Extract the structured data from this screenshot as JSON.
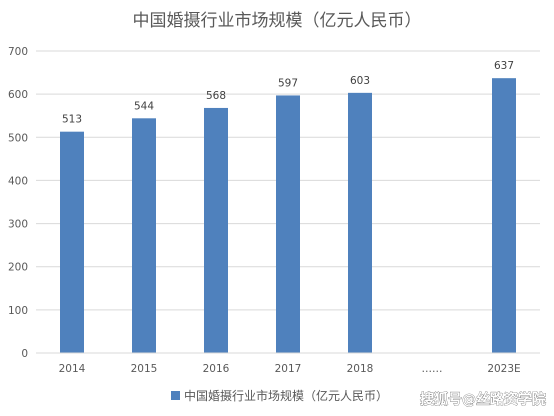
{
  "chart_data": {
    "type": "bar",
    "title": "中国婚摄行业市场规模（亿元人民币）",
    "categories": [
      "2014",
      "2015",
      "2016",
      "2017",
      "2018",
      "……",
      "2023E"
    ],
    "series": [
      {
        "name": "中国婚摄行业市场规模（亿元人民币）",
        "values": [
          513,
          544,
          568,
          597,
          603,
          null,
          637
        ]
      }
    ],
    "data_labels": [
      "513",
      "544",
      "568",
      "597",
      "603",
      "",
      "637"
    ],
    "ylim": [
      0,
      700
    ],
    "yticks": [
      "0",
      "100",
      "200",
      "300",
      "400",
      "500",
      "600",
      "700"
    ],
    "grid": true,
    "legend": "bottom",
    "color": "#4F81BD"
  },
  "watermark": "搜狐号@丝路资学院"
}
